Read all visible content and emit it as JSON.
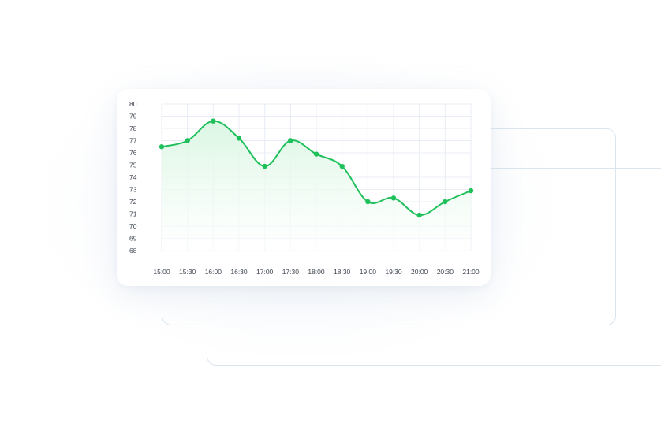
{
  "chart_data": {
    "type": "line",
    "title": "",
    "xlabel": "",
    "ylabel": "",
    "categories": [
      "15:00",
      "15:30",
      "16:00",
      "16:30",
      "17:00",
      "17:30",
      "18:00",
      "18:30",
      "19:00",
      "19:30",
      "20:00",
      "20:30",
      "21:00"
    ],
    "y_ticks": [
      "80",
      "79",
      "78",
      "77",
      "76",
      "75",
      "74",
      "73",
      "72",
      "71",
      "70",
      "69",
      "68"
    ],
    "ylim": [
      68,
      80
    ],
    "grid": true,
    "area_fill": true,
    "series": [
      {
        "values": [
          76.5,
          77.0,
          78.6,
          77.2,
          74.9,
          77.0,
          75.9,
          74.9,
          72.0,
          72.3,
          70.9,
          72.0,
          72.9
        ]
      }
    ],
    "colors": {
      "line": "#1ec05a",
      "point": "#1ec05a",
      "grid": "#e8edf5",
      "area_top": "#d9f6e2",
      "area_bottom": "#ffffff"
    }
  }
}
